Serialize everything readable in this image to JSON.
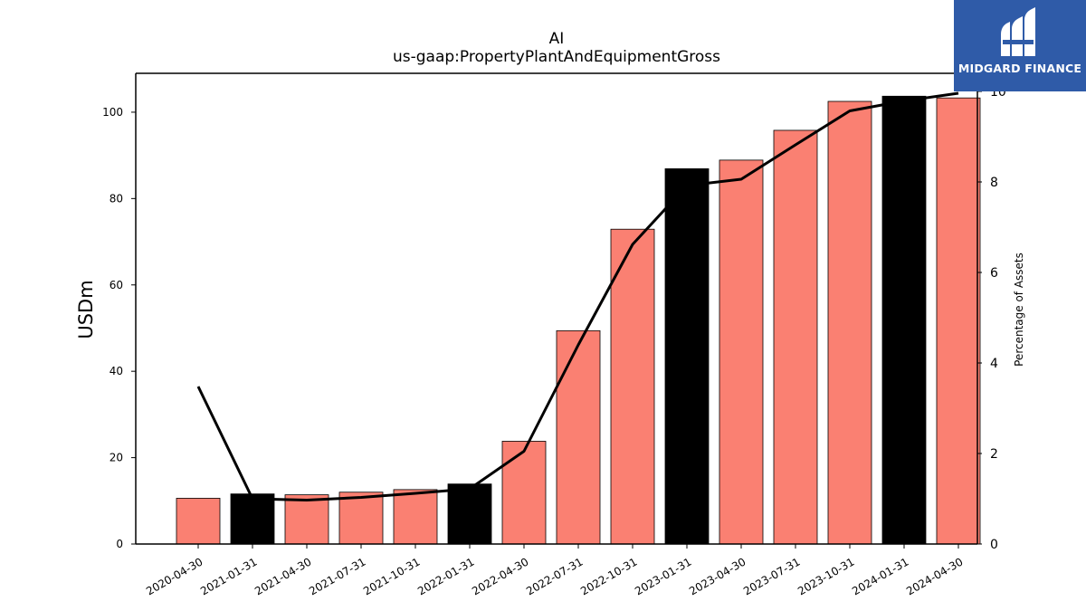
{
  "chart_data": {
    "type": "bar",
    "title": "AI",
    "subtitle": "us-gaap:PropertyPlantAndEquipmentGross",
    "ylabel": "USDm",
    "ylabel_right": "Percentage of Assets",
    "ylim": [
      0,
      109
    ],
    "ylim_right": [
      0,
      10.4
    ],
    "yticks": [
      0,
      20,
      40,
      60,
      80,
      100
    ],
    "yticks_right": [
      0,
      2,
      4,
      6,
      8,
      10
    ],
    "categories": [
      "2020-04-30",
      "2021-01-31",
      "2021-04-30",
      "2021-07-31",
      "2021-10-31",
      "2022-01-31",
      "2022-04-30",
      "2022-07-31",
      "2022-10-31",
      "2023-01-31",
      "2023-04-30",
      "2023-07-31",
      "2023-10-31",
      "2024-01-31",
      "2024-04-30"
    ],
    "series": [
      {
        "values": [
          10.6,
          11.6,
          11.4,
          12.0,
          12.6,
          13.9,
          23.8,
          49.4,
          72.9,
          86.9,
          88.9,
          95.8,
          102.5,
          103.7,
          103.3
        ],
        "axis": "left",
        "kind": "bar",
        "colors": [
          "#fa8072",
          "#000000",
          "#fa8072",
          "#fa8072",
          "#fa8072",
          "#000000",
          "#fa8072",
          "#fa8072",
          "#fa8072",
          "#000000",
          "#fa8072",
          "#fa8072",
          "#fa8072",
          "#000000",
          "#fa8072"
        ]
      },
      {
        "values": [
          3.48,
          1.0,
          0.97,
          1.03,
          1.12,
          1.22,
          2.05,
          4.4,
          6.62,
          7.92,
          8.06,
          8.82,
          9.57,
          9.79,
          9.96
        ],
        "axis": "right",
        "kind": "line",
        "color": "#000000"
      }
    ],
    "grid": false
  },
  "logo": {
    "text": "MIDGARD FINANCE"
  }
}
